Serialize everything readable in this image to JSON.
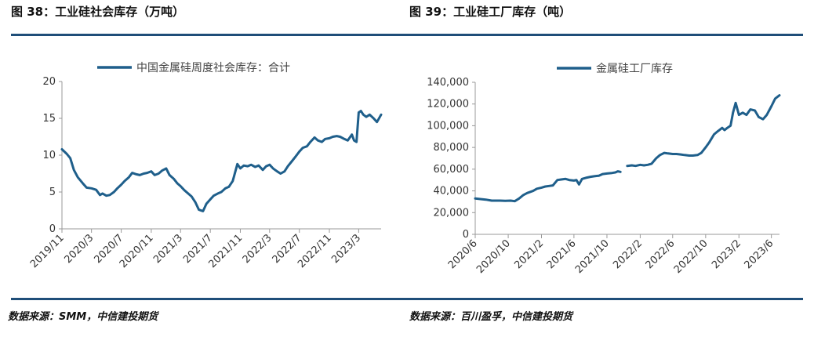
{
  "header": {
    "left_title": "图 38：工业硅社会库存（万吨）",
    "right_title": "图 39：工业硅工厂库存（吨）"
  },
  "footer": {
    "left_source": "数据来源：SMM，中信建投期货",
    "right_source": "数据来源：百川盈孚，中信建投期货"
  },
  "colors": {
    "series": "#1f5f8b",
    "rule": "#1f4e79",
    "axis": "#999999"
  },
  "chart_data": [
    {
      "type": "line",
      "title": "",
      "xlabel": "",
      "ylabel": "",
      "legend": "top-center",
      "grid": false,
      "ylim": [
        0,
        20
      ],
      "yticks": [
        0,
        5,
        10,
        15,
        20
      ],
      "xlim": [
        "2019-11",
        "2023-06"
      ],
      "xticks": [
        "2019/11",
        "2020/3",
        "2020/7",
        "2020/11",
        "2021/3",
        "2021/7",
        "2021/11",
        "2022/3",
        "2022/7",
        "2022/11",
        "2023/3"
      ],
      "series": [
        {
          "name": "中国金属硅周度社会库存：合计",
          "x": [
            "2019-11-01",
            "2019-11-20",
            "2019-12-05",
            "2019-12-20",
            "2020-01-05",
            "2020-01-25",
            "2020-02-10",
            "2020-03-01",
            "2020-03-20",
            "2020-04-05",
            "2020-04-15",
            "2020-05-01",
            "2020-05-15",
            "2020-06-01",
            "2020-06-15",
            "2020-07-01",
            "2020-07-15",
            "2020-08-01",
            "2020-08-15",
            "2020-09-01",
            "2020-09-15",
            "2020-10-01",
            "2020-10-15",
            "2020-11-01",
            "2020-11-15",
            "2020-12-01",
            "2020-12-15",
            "2021-01-01",
            "2021-01-15",
            "2021-02-01",
            "2021-02-15",
            "2021-03-01",
            "2021-03-15",
            "2021-04-01",
            "2021-04-15",
            "2021-05-01",
            "2021-05-15",
            "2021-06-01",
            "2021-06-15",
            "2021-07-01",
            "2021-07-15",
            "2021-08-01",
            "2021-08-15",
            "2021-09-01",
            "2021-09-15",
            "2021-10-01",
            "2021-10-05",
            "2021-10-20",
            "2021-11-01",
            "2021-11-15",
            "2021-12-01",
            "2021-12-15",
            "2022-01-01",
            "2022-01-15",
            "2022-02-01",
            "2022-02-15",
            "2022-03-01",
            "2022-03-15",
            "2022-04-01",
            "2022-04-15",
            "2022-05-01",
            "2022-05-15",
            "2022-06-01",
            "2022-06-15",
            "2022-07-01",
            "2022-07-15",
            "2022-08-01",
            "2022-08-15",
            "2022-09-01",
            "2022-09-15",
            "2022-10-01",
            "2022-10-15",
            "2022-11-01",
            "2022-11-15",
            "2022-12-01",
            "2022-12-15",
            "2023-01-01",
            "2023-01-15",
            "2023-02-01",
            "2023-02-10",
            "2023-02-20",
            "2023-03-01",
            "2023-03-10",
            "2023-03-20",
            "2023-04-01",
            "2023-04-15",
            "2023-05-01",
            "2023-05-15",
            "2023-06-01"
          ],
          "values": [
            10.8,
            10.2,
            9.6,
            8.0,
            7.0,
            6.2,
            5.6,
            5.5,
            5.3,
            4.6,
            4.8,
            4.5,
            4.6,
            5.0,
            5.5,
            6.0,
            6.5,
            7.0,
            7.6,
            7.4,
            7.3,
            7.5,
            7.6,
            7.8,
            7.3,
            7.5,
            7.9,
            8.2,
            7.3,
            6.8,
            6.2,
            5.8,
            5.3,
            4.8,
            4.4,
            3.6,
            2.6,
            2.4,
            3.4,
            4.0,
            4.5,
            4.8,
            5.0,
            5.5,
            5.7,
            6.5,
            7.0,
            8.8,
            8.2,
            8.6,
            8.5,
            8.7,
            8.4,
            8.6,
            8.0,
            8.5,
            8.7,
            8.2,
            7.8,
            7.5,
            7.8,
            8.5,
            9.2,
            9.8,
            10.5,
            11.0,
            11.2,
            11.8,
            12.4,
            12.0,
            11.8,
            12.2,
            12.3,
            12.5,
            12.6,
            12.5,
            12.2,
            12.0,
            12.8,
            12.0,
            11.8,
            15.8,
            16.0,
            15.5,
            15.2,
            15.5,
            15.0,
            14.5,
            15.5
          ]
        }
      ]
    },
    {
      "type": "line",
      "title": "",
      "xlabel": "",
      "ylabel": "",
      "legend": "top-left",
      "grid": false,
      "ylim": [
        0,
        140000
      ],
      "yticks": [
        0,
        20000,
        40000,
        60000,
        80000,
        100000,
        120000,
        140000
      ],
      "ytick_labels": [
        "0",
        "20,000",
        "40,000",
        "60,000",
        "80,000",
        "100,000",
        "120,000",
        "140,000"
      ],
      "xlim": [
        "2020-06",
        "2023-07"
      ],
      "xticks": [
        "2020/6",
        "2020/10",
        "2021/2",
        "2021/6",
        "2021/10",
        "2022/2",
        "2022/6",
        "2022/10",
        "2023/2",
        "2023/6"
      ],
      "series": [
        {
          "name": "金属硅工厂库存",
          "x": [
            "2020-06-01",
            "2020-06-20",
            "2020-07-10",
            "2020-08-01",
            "2020-09-01",
            "2020-09-20",
            "2020-10-10",
            "2020-10-25",
            "2020-11-10",
            "2020-11-25",
            "2020-12-10",
            "2021-01-01",
            "2021-01-15",
            "2021-02-01",
            "2021-02-15",
            "2021-03-01",
            "2021-03-15",
            "2021-04-01",
            "2021-04-15",
            "2021-05-01",
            "2021-05-15",
            "2021-06-01",
            "2021-06-10",
            "2021-06-20",
            "2021-07-01",
            "2021-07-15",
            "2021-08-01",
            "2021-08-15",
            "2021-09-01",
            "2021-09-15",
            "2021-10-01",
            "2021-10-20",
            "2021-11-01",
            "2021-11-10",
            "2021-11-20",
            "2021-12-01",
            "2021-12-15",
            "2022-01-01",
            "2022-01-15",
            "2022-02-01",
            "2022-02-15",
            "2022-03-01",
            "2022-03-15",
            "2022-04-01",
            "2022-04-15",
            "2022-05-01",
            "2022-05-15",
            "2022-06-01",
            "2022-06-15",
            "2022-07-01",
            "2022-07-15",
            "2022-08-01",
            "2022-08-15",
            "2022-09-01",
            "2022-09-15",
            "2022-10-01",
            "2022-10-15",
            "2022-11-01",
            "2022-11-15",
            "2022-12-01",
            "2022-12-10",
            "2022-12-20",
            "2023-01-01",
            "2023-01-10",
            "2023-01-20",
            "2023-02-01",
            "2023-02-15",
            "2023-03-01",
            "2023-03-15",
            "2023-04-01",
            "2023-04-15",
            "2023-05-01",
            "2023-05-15",
            "2023-06-01",
            "2023-06-15",
            "2023-07-01"
          ],
          "values": [
            33000,
            32500,
            32000,
            31000,
            31000,
            30800,
            31000,
            30500,
            33000,
            36000,
            38000,
            40000,
            42000,
            43000,
            44000,
            44500,
            45000,
            50000,
            50500,
            51000,
            50000,
            49500,
            50000,
            46000,
            51000,
            52000,
            53000,
            53500,
            54000,
            55500,
            56000,
            56500,
            57000,
            58000,
            57500,
            null,
            63000,
            63500,
            63000,
            64000,
            63500,
            64000,
            65000,
            70000,
            73000,
            75000,
            74500,
            74000,
            74000,
            73500,
            73000,
            72500,
            72500,
            73000,
            75000,
            80000,
            85000,
            92000,
            95000,
            98000,
            96000,
            98000,
            100000,
            112000,
            121000,
            110000,
            112000,
            110000,
            115000,
            114000,
            108000,
            106000,
            110000,
            118000,
            125000,
            128000
          ]
        }
      ]
    }
  ]
}
